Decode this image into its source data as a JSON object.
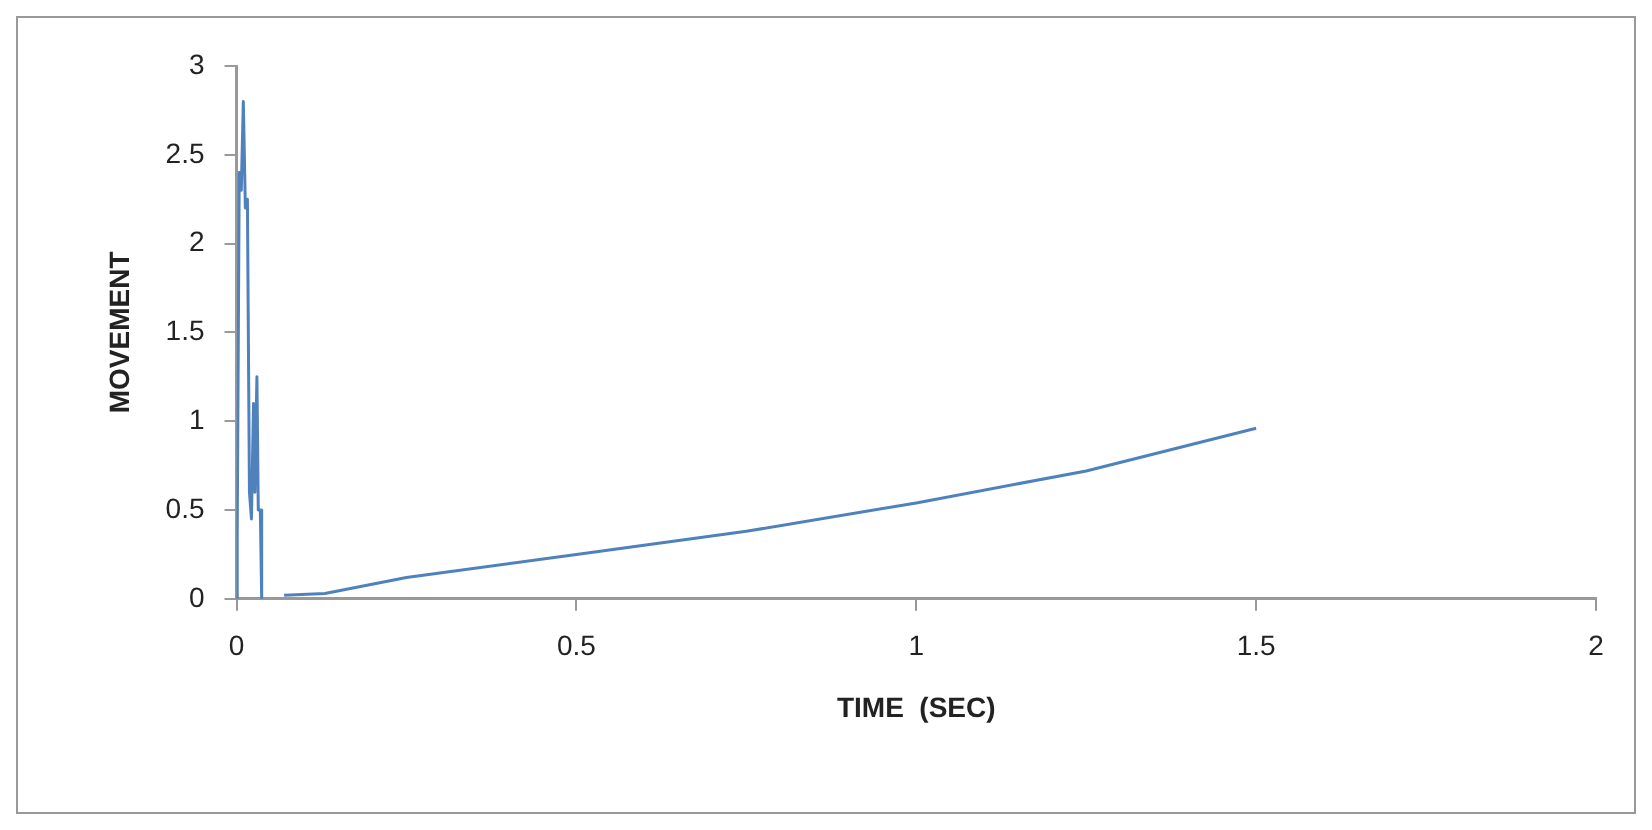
{
  "chart_data": {
    "type": "line",
    "xlabel": "TIME  (SEC)",
    "ylabel": "MOVEMENT",
    "x": [
      0,
      0.001,
      0.004,
      0.007,
      0.01,
      0.013,
      0.016,
      0.019,
      0.022,
      0.025,
      0.027,
      0.03,
      0.032,
      0.035,
      0.037,
      0.05,
      0.07,
      0.13,
      0.25,
      0.5,
      0.75,
      1,
      1.25,
      1.5
    ],
    "series": [
      {
        "color": "#4f81bd",
        "values": [
          0,
          0.35,
          2.4,
          2.3,
          2.8,
          2.2,
          2.25,
          0.6,
          0.45,
          1.1,
          0.6,
          1.25,
          0.5,
          0.5,
          0,
          null,
          0.02,
          0.03,
          0.12,
          0.25,
          0.38,
          0.54,
          0.72,
          0.96
        ]
      }
    ],
    "xlim": [
      0,
      2
    ],
    "xticks": [
      0,
      0.5,
      1,
      1.5,
      2
    ],
    "ylim": [
      0,
      3
    ],
    "yticks": [
      0,
      0.5,
      1,
      1.5,
      2,
      2.5,
      3
    ],
    "grid": false,
    "legend": false,
    "marker": "none",
    "line_style": "solid"
  }
}
